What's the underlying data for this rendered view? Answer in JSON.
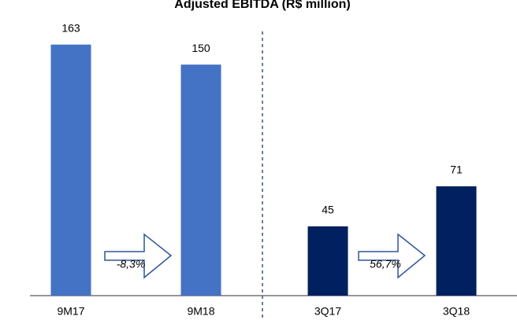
{
  "chart_data": {
    "type": "bar",
    "title": "Adjusted EBITDA (R$ million)",
    "categories": [
      "9M17",
      "9M18",
      "3Q17",
      "3Q18"
    ],
    "values": [
      163,
      150,
      45,
      71
    ],
    "colors": [
      "#4472c4",
      "#4472c4",
      "#002060",
      "#002060"
    ],
    "ylim": [
      0,
      170
    ],
    "annotations": [
      "-8,3%",
      "56,7%"
    ]
  }
}
